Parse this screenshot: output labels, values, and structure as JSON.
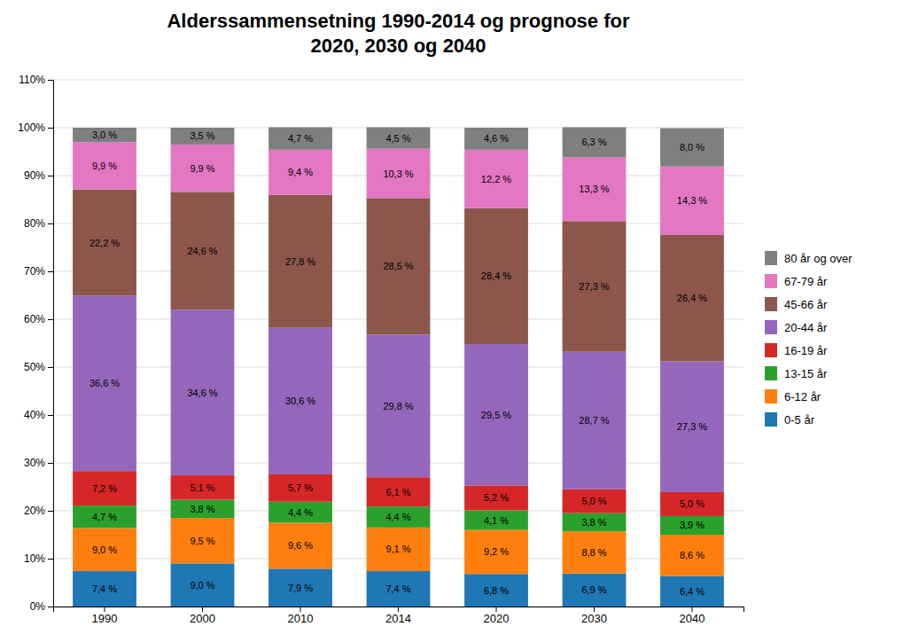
{
  "chart_data": {
    "type": "bar",
    "title": "Alderssammensetning 1990-2014 og prognose for\n2020, 2030 og 2040",
    "categories": [
      "1990",
      "2000",
      "2010",
      "2014",
      "2020",
      "2030",
      "2040"
    ],
    "series": [
      {
        "name": "0-5 år",
        "values": [
          7.4,
          9.0,
          7.9,
          7.4,
          6.8,
          6.9,
          6.4
        ],
        "value_labels": [
          "7,4 %",
          "9,0 %",
          "7,9 %",
          "7,4 %",
          "6,8 %",
          "6,9 %",
          "6,4 %"
        ]
      },
      {
        "name": "6-12 år",
        "values": [
          9.0,
          9.5,
          9.6,
          9.1,
          9.2,
          8.8,
          8.6
        ],
        "value_labels": [
          "9,0 %",
          "9,5 %",
          "9,6 %",
          "9,1 %",
          "9,2 %",
          "8,8 %",
          "8,6 %"
        ]
      },
      {
        "name": "13-15 år",
        "values": [
          4.7,
          3.8,
          4.4,
          4.4,
          4.1,
          3.8,
          3.9
        ],
        "value_labels": [
          "4,7 %",
          "3,8 %",
          "4,4 %",
          "4,4 %",
          "4,1 %",
          "3,8 %",
          "3,9 %"
        ]
      },
      {
        "name": "16-19 år",
        "values": [
          7.2,
          5.1,
          5.7,
          6.1,
          5.2,
          5.0,
          5.0
        ],
        "value_labels": [
          "7,2 %",
          "5,1 %",
          "5,7 %",
          "6,1 %",
          "5,2 %",
          "5,0 %",
          "5,0 %"
        ]
      },
      {
        "name": "20-44 år",
        "values": [
          36.6,
          34.6,
          30.6,
          29.8,
          29.5,
          28.7,
          27.3
        ],
        "value_labels": [
          "36,6 %",
          "34,6 %",
          "30,6 %",
          "29,8 %",
          "29,5 %",
          "28,7 %",
          "27,3 %"
        ]
      },
      {
        "name": "45-66 år",
        "values": [
          22.2,
          24.6,
          27.8,
          28.5,
          28.4,
          27.3,
          26.4
        ],
        "value_labels": [
          "22,2 %",
          "24,6 %",
          "27,8 %",
          "28,5 %",
          "28,4 %",
          "27,3 %",
          "26,4 %"
        ]
      },
      {
        "name": "67-79 år",
        "values": [
          9.9,
          9.9,
          9.4,
          10.3,
          12.2,
          13.3,
          14.3
        ],
        "value_labels": [
          "9,9 %",
          "9,9 %",
          "9,4 %",
          "10,3 %",
          "12,2 %",
          "13,3 %",
          "14,3 %"
        ]
      },
      {
        "name": "80 år og over",
        "values": [
          3.0,
          3.5,
          4.7,
          4.5,
          4.6,
          6.3,
          8.0
        ],
        "value_labels": [
          "3,0 %",
          "3,5 %",
          "4,7 %",
          "4,5 %",
          "4,6 %",
          "6,3 %",
          "8,0 %"
        ]
      }
    ],
    "ylim": [
      0,
      110
    ],
    "yticks": [
      {
        "value": 0,
        "label": "0%"
      },
      {
        "value": 10,
        "label": "10%"
      },
      {
        "value": 20,
        "label": "20%"
      },
      {
        "value": 30,
        "label": "30%"
      },
      {
        "value": 40,
        "label": "40%"
      },
      {
        "value": 50,
        "label": "50%"
      },
      {
        "value": 60,
        "label": "60%"
      },
      {
        "value": 70,
        "label": "70%"
      },
      {
        "value": 80,
        "label": "80%"
      },
      {
        "value": 90,
        "label": "90%"
      },
      {
        "value": 100,
        "label": "100%"
      },
      {
        "value": 110,
        "label": "110%"
      }
    ],
    "grid": true,
    "legend": "right",
    "stacked": true,
    "data_labels": true
  }
}
